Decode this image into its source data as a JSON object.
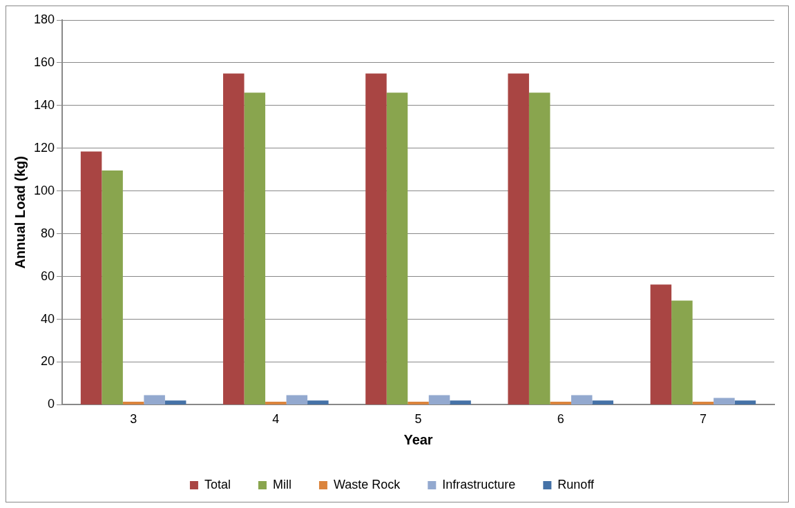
{
  "chart_data": {
    "type": "bar",
    "xlabel": "Year",
    "ylabel": "Annual Load (kg)",
    "categories": [
      "3",
      "4",
      "5",
      "6",
      "7"
    ],
    "series": [
      {
        "name": "Total",
        "color": "#a94543",
        "values": [
          118.5,
          155,
          155,
          155,
          56.2
        ]
      },
      {
        "name": "Mill",
        "color": "#89a54e",
        "values": [
          109.6,
          146,
          146,
          146,
          48.7
        ]
      },
      {
        "name": "Waste Rock",
        "color": "#db843d",
        "values": [
          1.4,
          1.4,
          1.4,
          1.4,
          1.4
        ]
      },
      {
        "name": "Infrastructure",
        "color": "#93a9cf",
        "values": [
          4.5,
          4.5,
          4.5,
          4.5,
          3.2
        ]
      },
      {
        "name": "Runoff",
        "color": "#4572a7",
        "values": [
          2.0,
          2.0,
          2.0,
          2.0,
          2.0
        ]
      }
    ],
    "ylim": [
      0,
      180
    ],
    "yticks": [
      0,
      20,
      40,
      60,
      80,
      100,
      120,
      140,
      160,
      180
    ],
    "grid": "y",
    "legend": "bottom"
  }
}
